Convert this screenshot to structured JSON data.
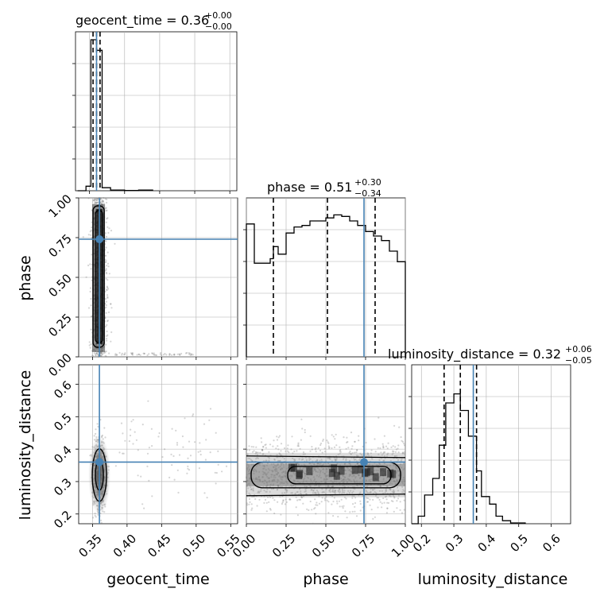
{
  "chart_data": {
    "type": "corner",
    "parameters": [
      "geocent_time",
      "phase",
      "luminosity_distance"
    ],
    "truths": {
      "geocent_time": 0.36,
      "phase": 0.74,
      "luminosity_distance": 0.36
    },
    "colors": {
      "truth": "#4682b4",
      "hist": "#000000",
      "grid": "#b0b0b0",
      "contour": "#000000"
    },
    "grid": true,
    "panels": {
      "geocent_time_hist": {
        "title_main": "geocent_time = 0.36",
        "title_sup": "+0.00",
        "title_sub": "−0.00",
        "xlim": [
          0.33,
          0.56
        ],
        "quantiles": [
          0.355,
          0.36,
          0.365
        ],
        "bins": [
          [
            0.333,
            0.0
          ],
          [
            0.345,
            0.03
          ],
          [
            0.352,
            1.0
          ],
          [
            0.36,
            0.93
          ],
          [
            0.368,
            0.02
          ],
          [
            0.38,
            0.005
          ],
          [
            0.4,
            0.002
          ],
          [
            0.42,
            0.004
          ],
          [
            0.44,
            0.0
          ]
        ]
      },
      "phase_hist": {
        "title_main": "phase = 0.51",
        "title_sup": "+0.30",
        "title_sub": "−0.34",
        "xlim": [
          0.0,
          1.0
        ],
        "quantiles": [
          0.17,
          0.51,
          0.81
        ],
        "bins": [
          [
            0.0,
            0.88
          ],
          [
            0.05,
            0.62
          ],
          [
            0.15,
            0.65
          ],
          [
            0.17,
            0.73
          ],
          [
            0.2,
            0.68
          ],
          [
            0.25,
            0.82
          ],
          [
            0.3,
            0.86
          ],
          [
            0.35,
            0.87
          ],
          [
            0.4,
            0.9
          ],
          [
            0.5,
            0.92
          ],
          [
            0.55,
            0.94
          ],
          [
            0.6,
            0.93
          ],
          [
            0.65,
            0.9
          ],
          [
            0.7,
            0.87
          ],
          [
            0.75,
            0.83
          ],
          [
            0.8,
            0.8
          ],
          [
            0.85,
            0.77
          ],
          [
            0.9,
            0.7
          ],
          [
            0.95,
            0.63
          ],
          [
            1.0,
            0.0
          ]
        ]
      },
      "luminosity_distance_hist": {
        "title_main": "luminosity_distance = 0.32",
        "title_sup": "+0.06",
        "title_sub": "−0.05",
        "xlim": [
          0.17,
          0.66
        ],
        "quantiles": [
          0.27,
          0.32,
          0.37
        ],
        "bins": [
          [
            0.17,
            0.0
          ],
          [
            0.19,
            0.05
          ],
          [
            0.21,
            0.19
          ],
          [
            0.235,
            0.3
          ],
          [
            0.255,
            0.52
          ],
          [
            0.275,
            0.8
          ],
          [
            0.3,
            0.86
          ],
          [
            0.32,
            0.75
          ],
          [
            0.345,
            0.58
          ],
          [
            0.37,
            0.35
          ],
          [
            0.385,
            0.18
          ],
          [
            0.41,
            0.13
          ],
          [
            0.43,
            0.05
          ],
          [
            0.45,
            0.02
          ],
          [
            0.475,
            0.005
          ],
          [
            0.52,
            0.0
          ]
        ]
      },
      "phase_vs_geocent_time": {
        "x": "geocent_time",
        "y": "phase",
        "xlim": [
          0.33,
          0.56
        ],
        "ylim": [
          0.0,
          1.0
        ]
      },
      "luminosity_distance_vs_geocent_time": {
        "x": "geocent_time",
        "y": "luminosity_distance",
        "xlim": [
          0.33,
          0.56
        ],
        "ylim": [
          0.17,
          0.66
        ]
      },
      "luminosity_distance_vs_phase": {
        "x": "phase",
        "y": "luminosity_distance",
        "xlim": [
          0.0,
          1.0
        ],
        "ylim": [
          0.17,
          0.66
        ]
      }
    },
    "ticks": {
      "geocent_time": [
        "0.35",
        "0.40",
        "0.45",
        "0.50",
        "0.55"
      ],
      "phase": [
        "0.00",
        "0.25",
        "0.50",
        "0.75",
        "1.00"
      ],
      "luminosity_distance": [
        "0.2",
        "0.3",
        "0.4",
        "0.5",
        "0.6"
      ]
    },
    "labels": {
      "x": [
        "geocent_time",
        "phase",
        "luminosity_distance"
      ],
      "y": [
        "phase",
        "luminosity_distance"
      ]
    }
  }
}
